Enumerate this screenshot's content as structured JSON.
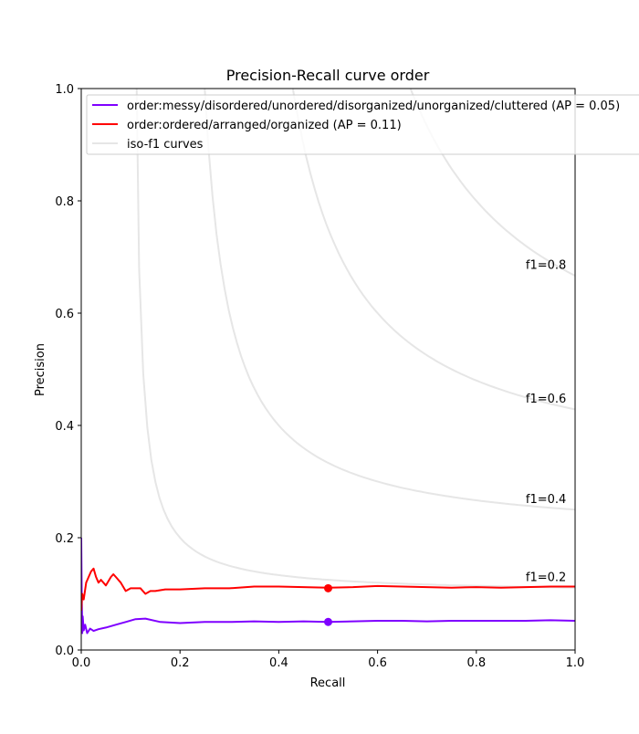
{
  "chart_data": {
    "type": "line",
    "title": "Precision-Recall curve order",
    "xlabel": "Recall",
    "ylabel": "Precision",
    "xlim": [
      0.0,
      1.0
    ],
    "ylim": [
      0.0,
      1.0
    ],
    "x_ticks": [
      "0.0",
      "0.2",
      "0.4",
      "0.6",
      "0.8",
      "1.0"
    ],
    "y_ticks": [
      "0.0",
      "0.2",
      "0.4",
      "0.6",
      "0.8",
      "1.0"
    ],
    "grid": false,
    "legend_position": "top-right",
    "legend": [
      {
        "label": "order:messy/disordered/unordered/disorganized/unorganized/cluttered (AP = 0.05)",
        "color": "#7f00ff"
      },
      {
        "label": "order:ordered/arranged/organized (AP = 0.11)",
        "color": "#ff0000"
      },
      {
        "label": "iso-f1 curves",
        "color": "#e6e6e6"
      }
    ],
    "iso_f1": [
      {
        "f1": 0.2,
        "label": "f1=0.2"
      },
      {
        "f1": 0.4,
        "label": "f1=0.4"
      },
      {
        "f1": 0.6,
        "label": "f1=0.6"
      },
      {
        "f1": 0.8,
        "label": "f1=0.8"
      }
    ],
    "series": [
      {
        "name": "order:messy/disordered/unordered/disorganized/unorganized/cluttered (AP = 0.05)",
        "color": "#7f00ff",
        "x": [
          0.0,
          0.001,
          0.002,
          0.003,
          0.005,
          0.008,
          0.012,
          0.018,
          0.025,
          0.035,
          0.05,
          0.07,
          0.09,
          0.11,
          0.13,
          0.16,
          0.2,
          0.25,
          0.3,
          0.35,
          0.4,
          0.45,
          0.5,
          0.55,
          0.6,
          0.65,
          0.7,
          0.75,
          0.8,
          0.85,
          0.9,
          0.95,
          1.0
        ],
        "y": [
          0.2,
          0.1,
          0.03,
          0.06,
          0.035,
          0.045,
          0.03,
          0.038,
          0.034,
          0.037,
          0.04,
          0.045,
          0.05,
          0.055,
          0.056,
          0.05,
          0.048,
          0.05,
          0.05,
          0.051,
          0.05,
          0.051,
          0.05,
          0.051,
          0.052,
          0.052,
          0.051,
          0.052,
          0.052,
          0.052,
          0.052,
          0.053,
          0.052
        ],
        "marker": {
          "x": 0.5,
          "y": 0.05
        }
      },
      {
        "name": "order:ordered/arranged/organized (AP = 0.11)",
        "color": "#ff0000",
        "x": [
          0.0,
          0.002,
          0.005,
          0.01,
          0.015,
          0.02,
          0.025,
          0.03,
          0.035,
          0.04,
          0.05,
          0.06,
          0.065,
          0.07,
          0.08,
          0.09,
          0.1,
          0.12,
          0.13,
          0.14,
          0.15,
          0.17,
          0.2,
          0.25,
          0.3,
          0.35,
          0.4,
          0.45,
          0.5,
          0.55,
          0.6,
          0.65,
          0.7,
          0.75,
          0.8,
          0.85,
          0.9,
          0.95,
          1.0
        ],
        "y": [
          0.07,
          0.1,
          0.09,
          0.12,
          0.13,
          0.14,
          0.145,
          0.13,
          0.12,
          0.125,
          0.115,
          0.13,
          0.135,
          0.13,
          0.12,
          0.105,
          0.11,
          0.11,
          0.1,
          0.105,
          0.105,
          0.108,
          0.108,
          0.11,
          0.11,
          0.113,
          0.113,
          0.112,
          0.111,
          0.112,
          0.114,
          0.113,
          0.112,
          0.111,
          0.112,
          0.111,
          0.112,
          0.113,
          0.113
        ],
        "marker": {
          "x": 0.5,
          "y": 0.11
        }
      }
    ]
  }
}
